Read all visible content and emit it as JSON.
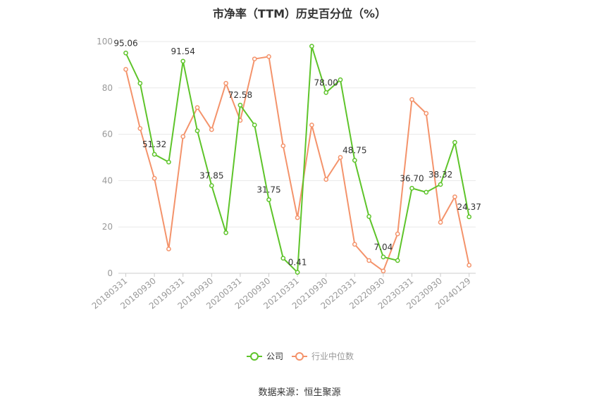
{
  "title": "市净率（TTM）历史百分位（%）",
  "source": "数据来源：恒生聚源",
  "colors": {
    "company": "#5ec42a",
    "industry": "#f4936b",
    "grid": "#e8e8e8",
    "axis": "#cccccc"
  },
  "chart_data": {
    "type": "line",
    "title": "市净率（TTM）历史百分位（%）",
    "ylim": [
      0,
      100
    ],
    "yticks": [
      "0",
      "20",
      "40",
      "60",
      "80",
      "100"
    ],
    "x": [
      "20180331",
      "20180630",
      "20180930",
      "20181231",
      "20190331",
      "20190630",
      "20190930",
      "20191231",
      "20200331",
      "20200630",
      "20200930",
      "20201231",
      "20210331",
      "20210630",
      "20210930",
      "20211231",
      "20220331",
      "20220630",
      "20220930",
      "20221231",
      "20230331",
      "20230630",
      "20230930",
      "20231231",
      "20240129"
    ],
    "xtick_labels": [
      "20180331",
      "20180930",
      "20190331",
      "20190930",
      "20200331",
      "20200930",
      "20210331",
      "20210930",
      "20220331",
      "20220930",
      "20230331",
      "20230930",
      "20240129"
    ],
    "grid": true,
    "legend": "bottom",
    "series": [
      {
        "name": "公司",
        "values": [
          95.06,
          82,
          51.32,
          48,
          91.54,
          61.5,
          37.85,
          17.5,
          72.58,
          64,
          31.75,
          6.5,
          0.41,
          98,
          78.0,
          83.5,
          48.75,
          24.5,
          7.04,
          5.5,
          36.7,
          35,
          38.32,
          56.5,
          24.37
        ],
        "labels": [
          "95.06",
          "",
          "51.32",
          "",
          "91.54",
          "",
          "37.85",
          "",
          "72.58",
          "",
          "31.75",
          "",
          "0.41",
          "",
          "78.00",
          "",
          "48.75",
          "",
          "7.04",
          "",
          "36.70",
          "",
          "38.32",
          "",
          "24.37"
        ]
      },
      {
        "name": "行业中位数",
        "values": [
          88,
          62.5,
          41,
          10.5,
          59,
          71.5,
          62,
          82,
          66,
          92.5,
          93.5,
          55,
          24,
          64,
          40.5,
          50,
          12.5,
          5.5,
          1,
          17,
          75,
          69,
          22,
          33,
          3.5
        ]
      }
    ]
  }
}
